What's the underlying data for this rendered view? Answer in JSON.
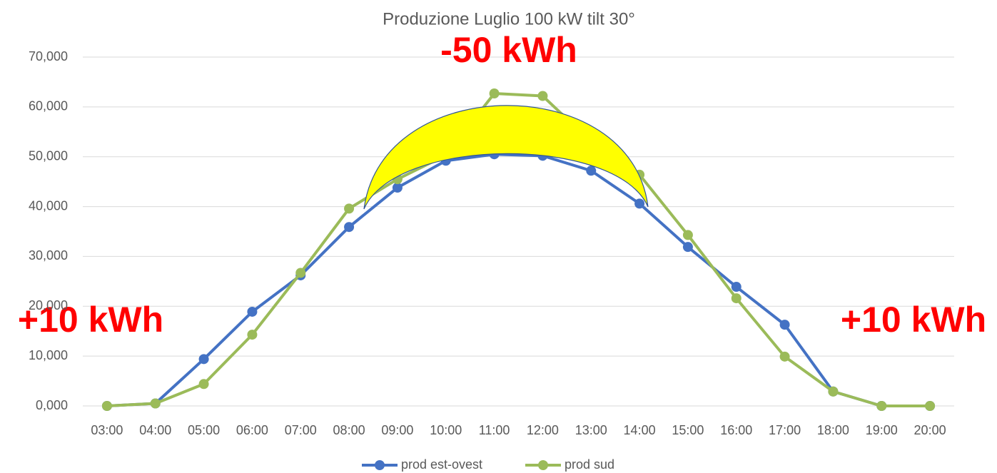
{
  "chart_data": {
    "type": "line",
    "title": "Produzione Luglio 100 kW tilt 30°",
    "categories": [
      "03:00",
      "04:00",
      "05:00",
      "06:00",
      "07:00",
      "08:00",
      "09:00",
      "10:00",
      "11:00",
      "12:00",
      "13:00",
      "14:00",
      "15:00",
      "16:00",
      "17:00",
      "18:00",
      "19:00",
      "20:00"
    ],
    "series": [
      {
        "name": "prod est-ovest",
        "color": "#4472c4",
        "values": [
          0,
          0.5,
          9.4,
          18.9,
          26.2,
          35.9,
          43.8,
          49.2,
          50.5,
          50.2,
          47.2,
          40.6,
          31.9,
          23.9,
          16.3,
          2.9,
          0,
          0
        ]
      },
      {
        "name": "prod sud",
        "color": "#9bbb59",
        "values": [
          0,
          0.5,
          4.4,
          14.3,
          26.7,
          39.6,
          45.5,
          50.3,
          62.7,
          62.2,
          53.0,
          46.4,
          34.3,
          21.6,
          9.9,
          2.9,
          0,
          0
        ]
      }
    ],
    "ylim": [
      0,
      70
    ],
    "yticks": [
      {
        "value": 0,
        "label": "0,000"
      },
      {
        "value": 10,
        "label": "10,000"
      },
      {
        "value": 20,
        "label": "20,000"
      },
      {
        "value": 30,
        "label": "30,000"
      },
      {
        "value": 40,
        "label": "40,000"
      },
      {
        "value": 50,
        "label": "50,000"
      },
      {
        "value": 60,
        "label": "60,000"
      },
      {
        "value": 70,
        "label": "70,000"
      }
    ],
    "grid": true,
    "legend": "bottom",
    "annotations": [
      "-50 kWh",
      "+10 kWh",
      "+10 kWh"
    ]
  }
}
